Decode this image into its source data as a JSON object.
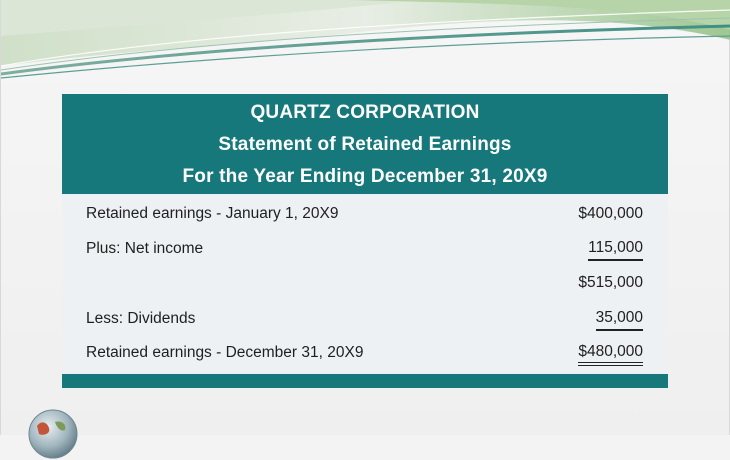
{
  "header": {
    "company": "QUARTZ CORPORATION",
    "statement_title": "Statement of Retained Earnings",
    "period": "For the Year Ending December 31, 20X9"
  },
  "rows": [
    {
      "label": "Retained earnings - January 1, 20X9",
      "amount": "$400,000"
    },
    {
      "label": "Plus: Net income",
      "amount": "115,000"
    },
    {
      "label": "",
      "amount": "$515,000"
    },
    {
      "label": "Less: Dividends",
      "amount": "35,000"
    },
    {
      "label": "Retained earnings - December 31, 20X9",
      "amount": "$480,000"
    }
  ],
  "colors": {
    "header_teal": "#16787a",
    "table_background": "#edf1f4",
    "wave_green": "#9fc58a",
    "wave_teal": "#2f8b88"
  }
}
